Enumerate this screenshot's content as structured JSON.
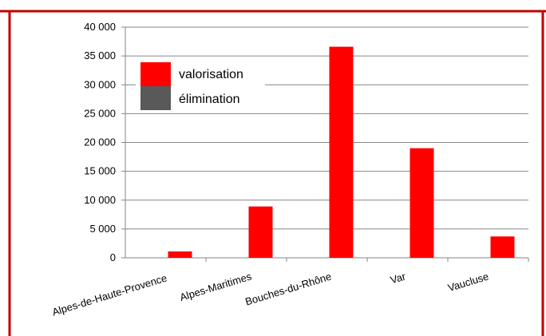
{
  "colors": {
    "frame": "#c00000",
    "valorisation": "#ff0000",
    "elimination": "#595959",
    "gridline": "#868686"
  },
  "chart_data": {
    "type": "bar",
    "categories": [
      "Alpes-de-Haute-Provence",
      "Alpes-Maritimes",
      "Bouches-du-Rhône",
      "Var",
      "Vaucluse"
    ],
    "series": [
      {
        "name": "valorisation",
        "values": [
          1100,
          8900,
          36600,
          19000,
          3700
        ]
      },
      {
        "name": "élimination",
        "values": [
          0,
          0,
          0,
          0,
          0
        ]
      }
    ],
    "ylim": [
      0,
      40000
    ],
    "yticks": [
      0,
      5000,
      10000,
      15000,
      20000,
      25000,
      30000,
      35000,
      40000
    ],
    "ytick_labels": [
      "0",
      "5 000",
      "10 000",
      "15 000",
      "20 000",
      "25 000",
      "30 000",
      "35 000",
      "40 000"
    ],
    "grid": true,
    "legend_position": "top-left"
  }
}
